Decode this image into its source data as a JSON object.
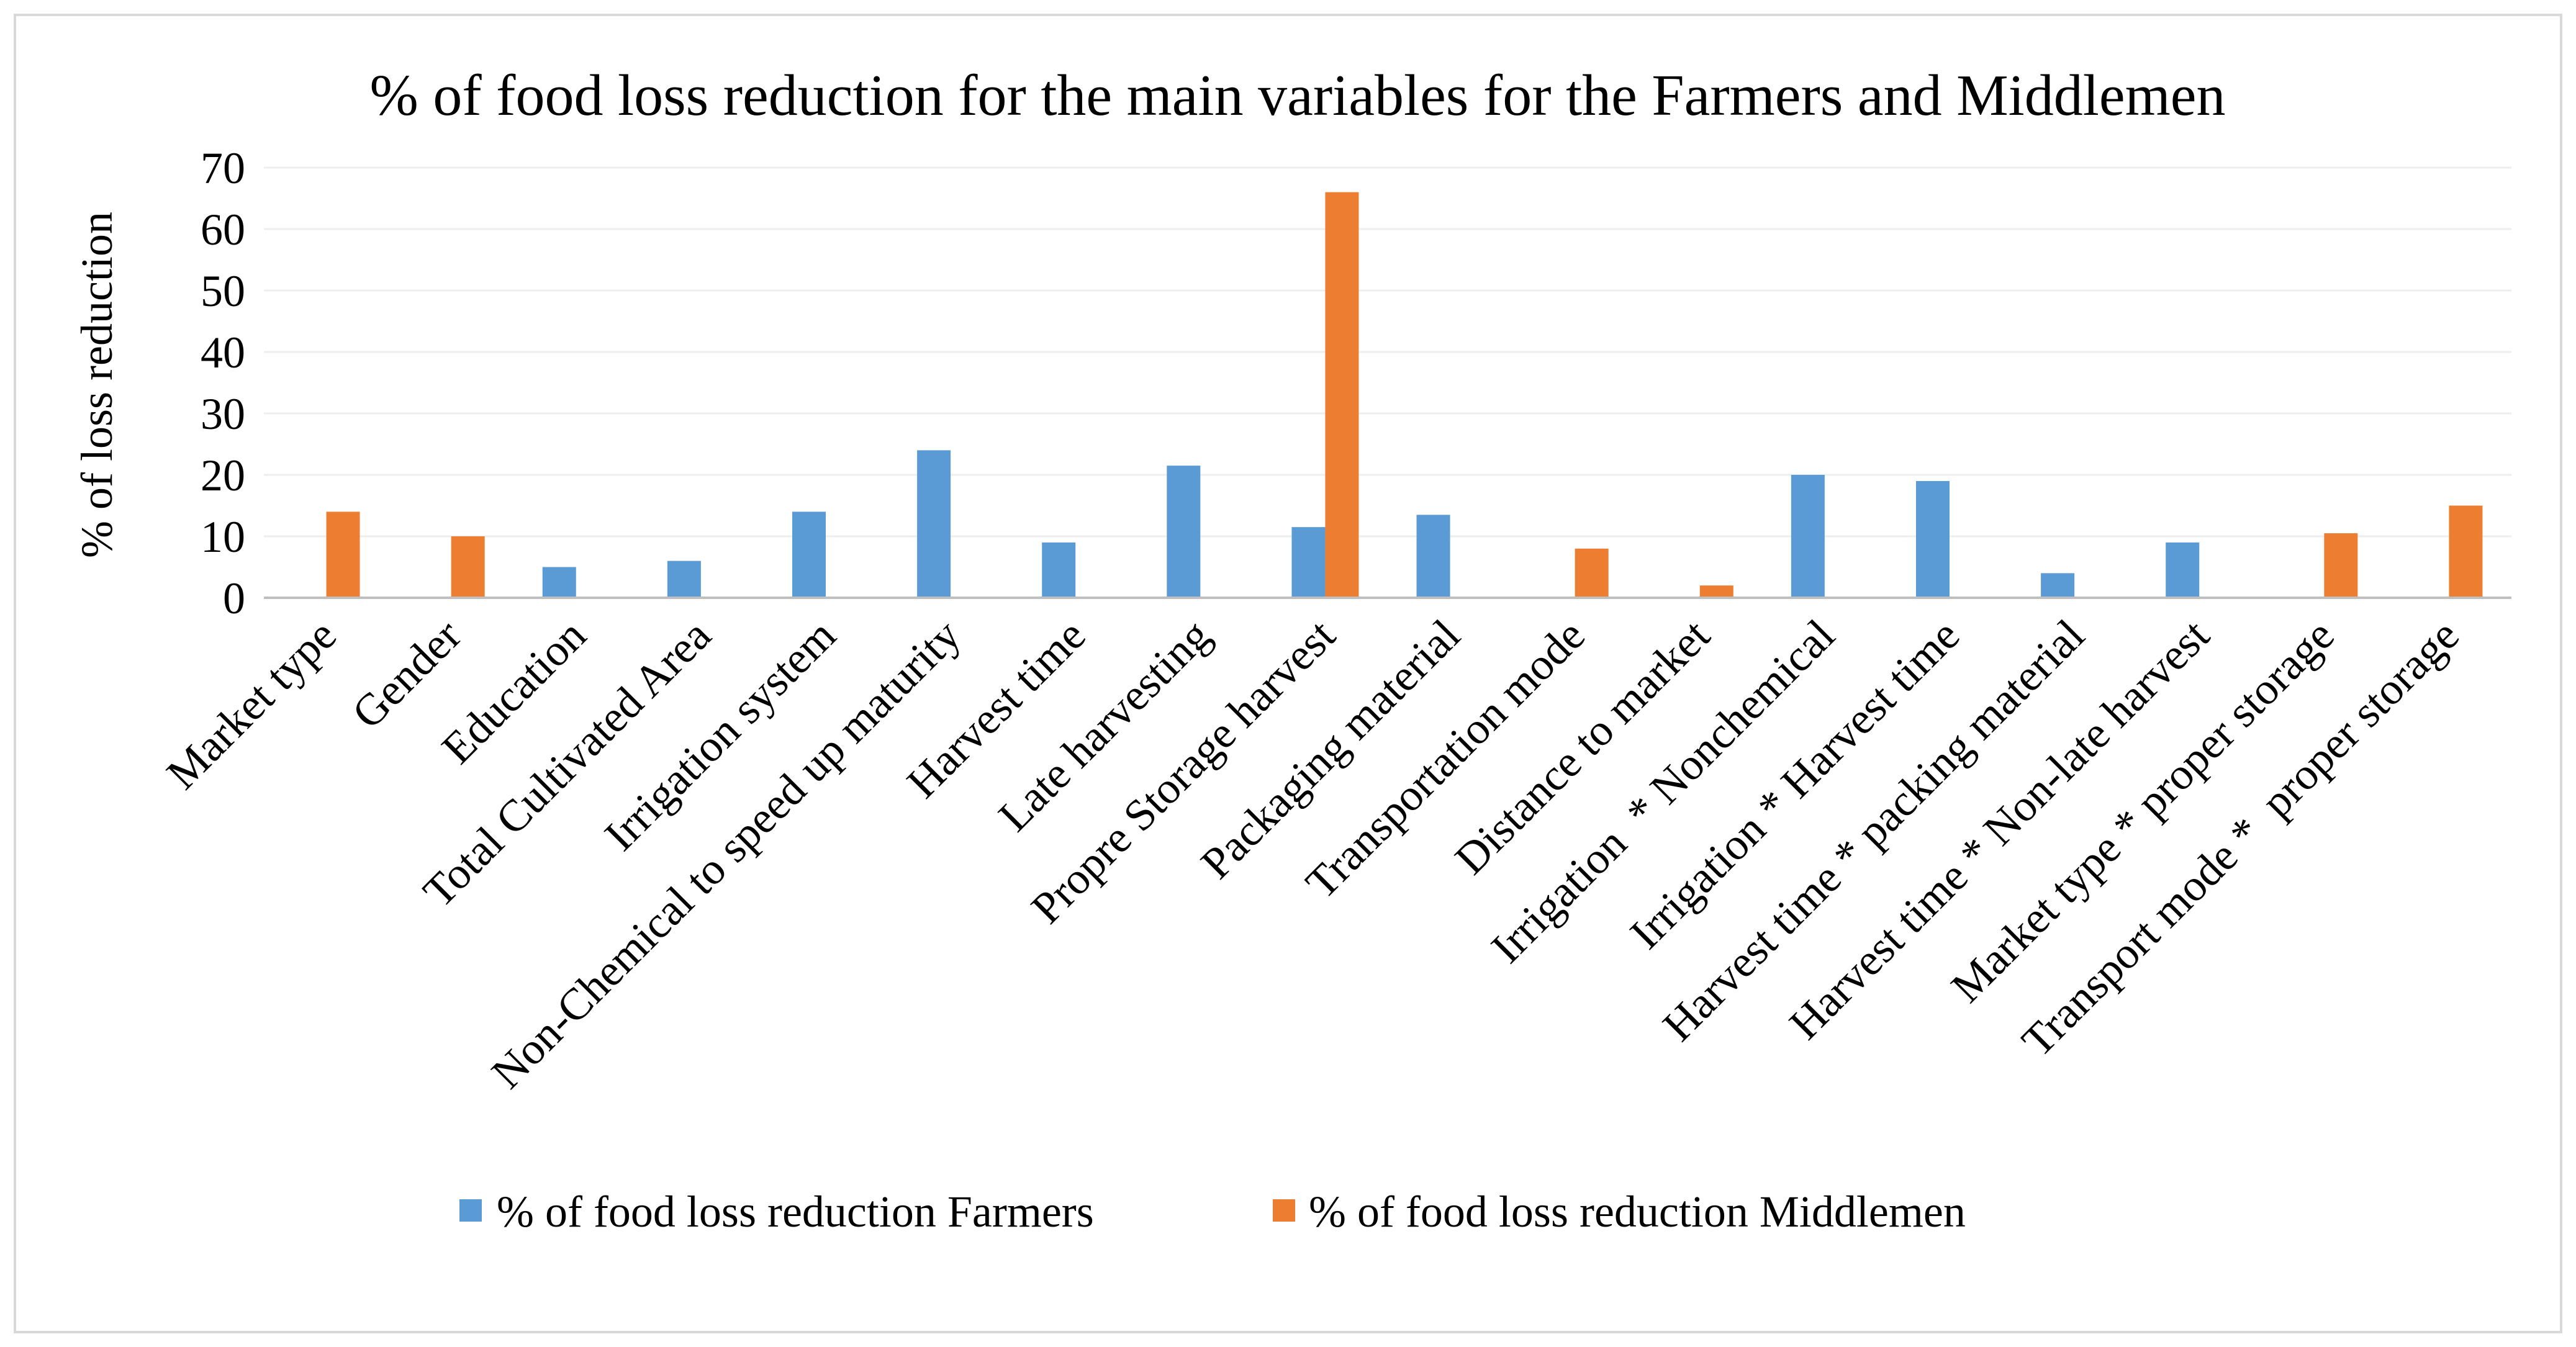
{
  "chart_data": {
    "type": "bar",
    "title": "% of food loss reduction for the main variables for the Farmers and Middlemen",
    "xlabel": "",
    "ylabel": "% of loss reduction",
    "ylim": [
      0,
      70
    ],
    "yticks": [
      "0",
      "10",
      "20",
      "30",
      "40",
      "50",
      "60",
      "70"
    ],
    "grid": true,
    "legend_position": "bottom",
    "categories": [
      "Market type",
      "Gender",
      "Education",
      "Total Cultivated Area",
      "Irrigation system",
      "Non-Chemical to speed up maturity",
      "Harvest time",
      "Late harvesting",
      "Propre Storage harvest",
      "Packaging material",
      "Transportation mode",
      "Distance to market",
      "Irrigation  * Nonchemical",
      "Irrigation * Harvest time",
      "Harvest time * packing material",
      "Harvest time * Non-late harvest",
      "Market type * proper storage",
      "Transport mode *  proper storage"
    ],
    "series": [
      {
        "name": "% of food loss reduction Farmers",
        "color": "#5B9BD5",
        "values": [
          0,
          0,
          5,
          6,
          14,
          24,
          9,
          21.5,
          11.5,
          13.5,
          0,
          0,
          20,
          19,
          4,
          9,
          0,
          0
        ]
      },
      {
        "name": "% of food loss reduction Middlemen",
        "color": "#ED7D31",
        "values": [
          14,
          10,
          0,
          0,
          0,
          0,
          0,
          0,
          66,
          0,
          8,
          2,
          0,
          0,
          0,
          0,
          10.5,
          15
        ]
      }
    ]
  }
}
